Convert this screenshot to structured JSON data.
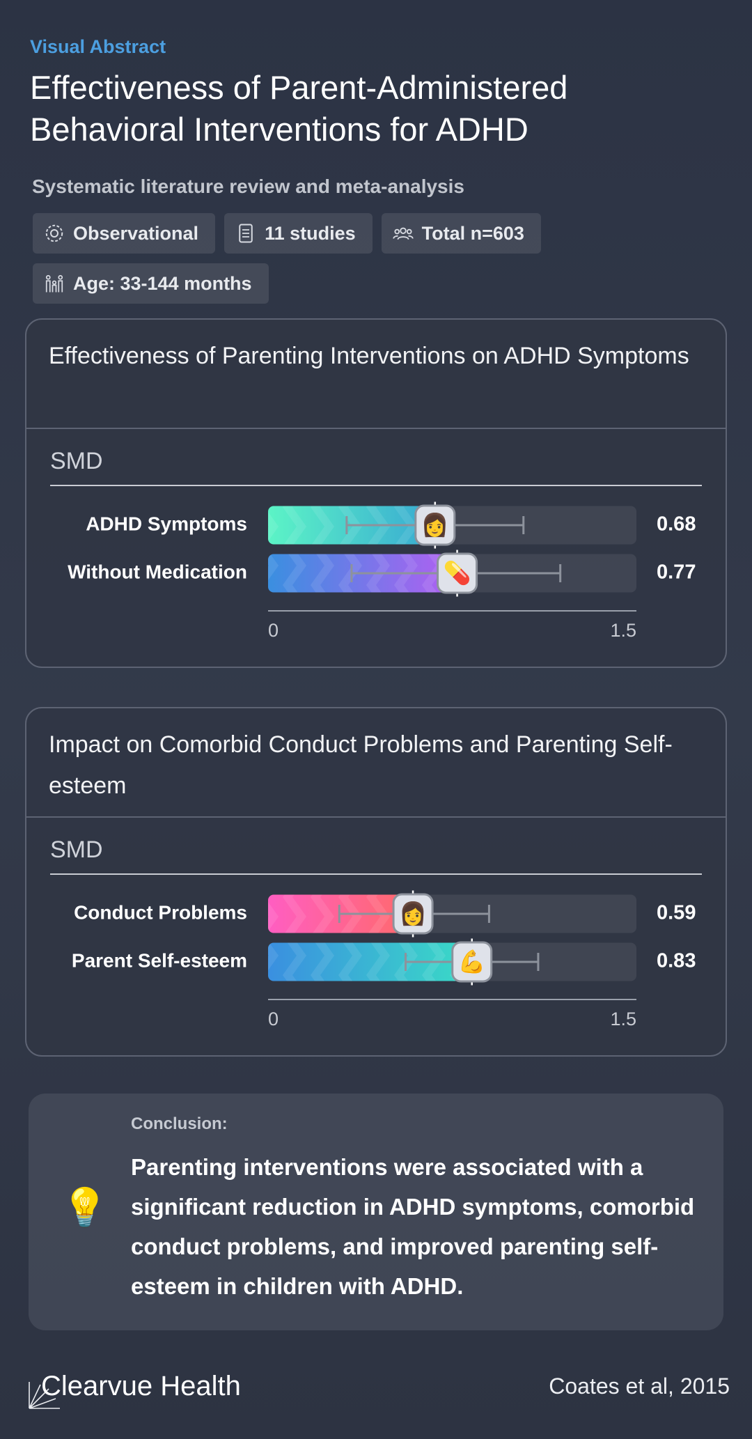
{
  "header": {
    "kicker": "Visual Abstract",
    "title": "Effectiveness of Parent-Administered Behavioral Interventions for ADHD",
    "subtitle": "Systematic literature review and meta-analysis",
    "tags": [
      "Observational",
      "11 studies",
      "Total n=603",
      "Age: 33-144 months"
    ]
  },
  "chart_data": [
    {
      "type": "bar",
      "orientation": "horizontal",
      "title": "Effectiveness of Parenting Interventions on ADHD Symptoms",
      "x_label": "SMD",
      "categories": [
        "ADHD Symptoms",
        "Without Medication"
      ],
      "values": [
        0.68,
        0.77
      ],
      "ci_lower": [
        0.32,
        0.34
      ],
      "ci_upper": [
        1.04,
        1.19
      ],
      "colors": [
        [
          "#5cf4c6",
          "#38a9d2"
        ],
        [
          "#3a8fe0",
          "#b35ff2"
        ]
      ],
      "icons": [
        "👩",
        "💊"
      ],
      "xlim": [
        0,
        1.5
      ],
      "xticks": [
        0,
        1.5
      ]
    },
    {
      "type": "bar",
      "orientation": "horizontal",
      "title": "Impact on Comorbid Conduct Problems and Parenting Self-esteem",
      "x_label": "SMD",
      "categories": [
        "Conduct Problems",
        "Parent Self-esteem"
      ],
      "values": [
        0.59,
        0.83
      ],
      "ci_lower": [
        0.29,
        0.56
      ],
      "ci_upper": [
        0.9,
        1.1
      ],
      "colors": [
        [
          "#ff5ec2",
          "#ff6a6a"
        ],
        [
          "#3a8fe0",
          "#3adcc6"
        ]
      ],
      "icons": [
        "👩",
        "💪"
      ],
      "xlim": [
        0,
        1.5
      ],
      "xticks": [
        0,
        1.5
      ]
    }
  ],
  "conclusion": {
    "label": "Conclusion:",
    "text": "Parenting interventions were associated with a significant reduction in ADHD symptoms, comorbid conduct problems, and improved parenting self-esteem in children with ADHD.",
    "icon": "💡"
  },
  "footer": {
    "brand": "Clearvue Health",
    "citation": "Coates et al, 2015"
  }
}
